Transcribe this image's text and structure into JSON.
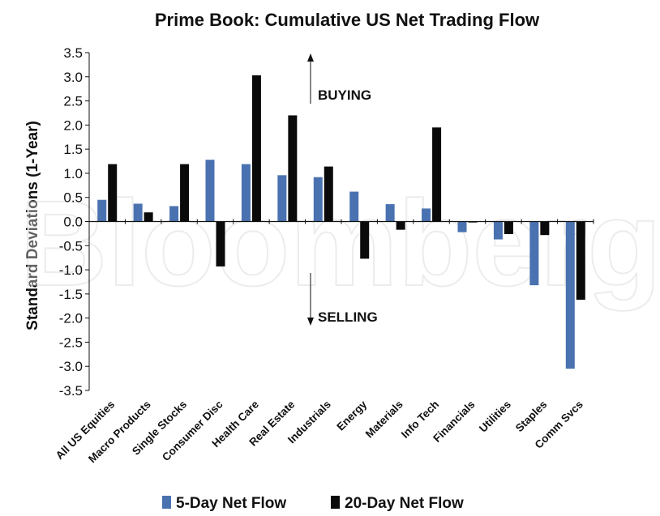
{
  "chart_data": {
    "type": "bar",
    "title": "Prime Book: Cumulative US Net Trading Flow",
    "ylabel": "Standard Deviations (1-Year)",
    "xlabel": "",
    "ylim": [
      -3.5,
      3.5
    ],
    "yticks": [
      3.5,
      3.0,
      2.5,
      2.0,
      1.5,
      1.0,
      0.5,
      0.0,
      -0.5,
      -1.0,
      -1.5,
      -2.0,
      -2.5,
      -3.0,
      -3.5
    ],
    "ytick_labels": [
      "3.5",
      "3.0",
      "2.5",
      "2.0",
      "1.5",
      "1.0",
      "0.5",
      "0.0",
      "-0.5",
      "-1.0",
      "-1.5",
      "-2.0",
      "-2.5",
      "-3.0",
      "-3.5"
    ],
    "categories": [
      "All US Equities",
      "Macro Products",
      "Single Stocks",
      "Consumer Disc",
      "Health Care",
      "Real Estate",
      "Industrials",
      "Energy",
      "Materials",
      "Info Tech",
      "Financials",
      "Utilities",
      "Staples",
      "Comm Svcs"
    ],
    "series": [
      {
        "name": "5-Day Net Flow",
        "color": "#4a72b0",
        "values": [
          0.45,
          0.37,
          0.32,
          1.28,
          1.19,
          0.96,
          0.92,
          0.62,
          0.36,
          0.27,
          -0.22,
          -0.37,
          -1.32,
          -3.05
        ]
      },
      {
        "name": "20-Day Net Flow",
        "color": "#0a0a0a",
        "values": [
          1.19,
          0.19,
          1.19,
          -0.93,
          3.03,
          2.2,
          1.14,
          -0.77,
          -0.17,
          1.95,
          -0.02,
          -0.26,
          -0.28,
          -1.62
        ]
      }
    ],
    "grid": false,
    "legend_position": "bottom",
    "annotations": [
      {
        "text": "BUYING",
        "direction": "up"
      },
      {
        "text": "SELLING",
        "direction": "down"
      }
    ],
    "watermark": "Bloomberg"
  }
}
